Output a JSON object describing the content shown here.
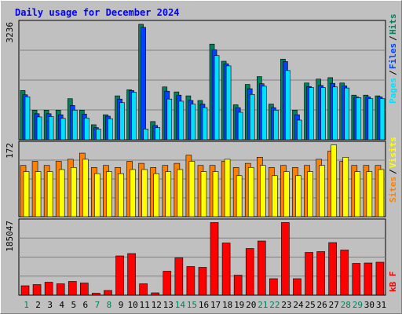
{
  "chart_data": [
    {
      "type": "bar",
      "title": "Daily usage for December 2024",
      "ytick_label": "3236",
      "ylim": [
        0,
        3300
      ],
      "legend": [
        "Pages",
        "/",
        "Files",
        "/",
        "Hits"
      ],
      "categories": [
        "1",
        "2",
        "3",
        "4",
        "5",
        "6",
        "7",
        "8",
        "9",
        "10",
        "11",
        "12",
        "13",
        "14",
        "15",
        "16",
        "17",
        "18",
        "19",
        "20",
        "21",
        "22",
        "23",
        "24",
        "25",
        "26",
        "27",
        "28",
        "29",
        "30",
        "31"
      ],
      "series": [
        {
          "name": "Hits",
          "values": [
            1380,
            830,
            830,
            830,
            1150,
            830,
            420,
            700,
            1230,
            1400,
            3236,
            510,
            1480,
            1340,
            1230,
            1100,
            2680,
            2200,
            980,
            1550,
            1770,
            1000,
            2260,
            830,
            1590,
            1700,
            1740,
            1590,
            1250,
            1250,
            1230
          ]
        },
        {
          "name": "Files",
          "values": [
            1260,
            730,
            730,
            700,
            960,
            720,
            340,
            660,
            1140,
            1380,
            3150,
            400,
            1360,
            1250,
            1100,
            1000,
            2520,
            2130,
            900,
            1430,
            1570,
            900,
            2190,
            700,
            1490,
            1520,
            1580,
            1510,
            1200,
            1200,
            1200
          ]
        },
        {
          "name": "Pages",
          "values": [
            1200,
            640,
            650,
            600,
            830,
            610,
            300,
            590,
            1040,
            1330,
            300,
            340,
            1140,
            1080,
            1000,
            900,
            2360,
            2070,
            770,
            1270,
            1500,
            830,
            1940,
            550,
            1460,
            1460,
            1480,
            1450,
            1180,
            1150,
            1150
          ]
        }
      ],
      "colors": {
        "Hits": "#00805c",
        "Files": "#0040ff",
        "Pages": "#00e0ff"
      }
    },
    {
      "type": "bar",
      "ytick_label": "172",
      "ylim": [
        0,
        180
      ],
      "legend": [
        "Sites",
        "/",
        "Visits"
      ],
      "categories": [
        "1",
        "2",
        "3",
        "4",
        "5",
        "6",
        "7",
        "8",
        "9",
        "10",
        "11",
        "12",
        "13",
        "14",
        "15",
        "16",
        "17",
        "18",
        "19",
        "20",
        "21",
        "22",
        "23",
        "24",
        "25",
        "26",
        "27",
        "28",
        "29",
        "30",
        "31"
      ],
      "series": [
        {
          "name": "Visits",
          "values": [
            125,
            135,
            125,
            135,
            140,
            155,
            120,
            125,
            120,
            135,
            130,
            120,
            125,
            130,
            150,
            125,
            125,
            135,
            120,
            130,
            145,
            120,
            125,
            120,
            125,
            140,
            160,
            135,
            125,
            125,
            125
          ]
        },
        {
          "name": "Sites",
          "values": [
            110,
            110,
            110,
            115,
            120,
            140,
            105,
            110,
            105,
            115,
            115,
            105,
            110,
            115,
            135,
            110,
            110,
            140,
            100,
            120,
            125,
            100,
            110,
            100,
            110,
            125,
            175,
            145,
            110,
            110,
            115
          ]
        }
      ],
      "colors": {
        "Visits": "#ff8000",
        "Sites": "#ffff00"
      }
    },
    {
      "type": "bar",
      "ytick_label": "185047",
      "ylim": [
        0,
        190000
      ],
      "legend": [
        "kB F"
      ],
      "categories": [
        "1",
        "2",
        "3",
        "4",
        "5",
        "6",
        "7",
        "8",
        "9",
        "10",
        "11",
        "12",
        "13",
        "14",
        "15",
        "16",
        "17",
        "18",
        "19",
        "20",
        "21",
        "22",
        "23",
        "24",
        "25",
        "26",
        "27",
        "28",
        "29",
        "30",
        "31"
      ],
      "series": [
        {
          "name": "kB F",
          "values": [
            24000,
            27000,
            33000,
            29000,
            35000,
            31000,
            5000,
            12000,
            100000,
            106000,
            29000,
            6000,
            61000,
            95000,
            73000,
            71000,
            185047,
            133000,
            51000,
            119000,
            138000,
            42000,
            185047,
            42000,
            109000,
            111000,
            134000,
            115000,
            81000,
            82000,
            84000
          ]
        }
      ],
      "colors": {
        "kB F": "#ff0000"
      }
    }
  ],
  "weekend_days": [
    "1",
    "7",
    "8",
    "14",
    "15",
    "21",
    "22",
    "28",
    "29"
  ]
}
